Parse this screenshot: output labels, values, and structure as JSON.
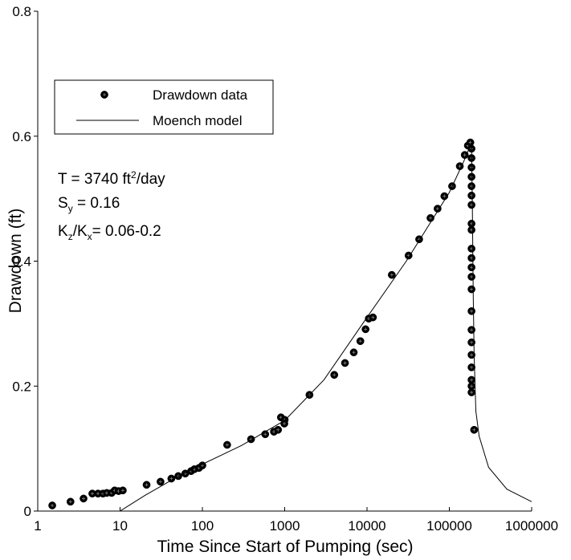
{
  "chart_data": {
    "type": "scatter",
    "xlabel": "Time Since Start of Pumping (sec)",
    "ylabel": "Drawdown  (ft)",
    "xscale": "log",
    "xlim": [
      1,
      1000000
    ],
    "xticks": [
      1,
      10,
      100,
      1000,
      10000,
      100000,
      1000000
    ],
    "ylim": [
      0,
      0.8
    ],
    "yticks": [
      0,
      0.2,
      0.4,
      0.6,
      0.8
    ],
    "legend": "upper left",
    "annotations": [
      [
        "T = 3740 ft",
        "2",
        "/day"
      ],
      [
        "S",
        "y",
        " = 0.16"
      ],
      [
        "K",
        "z",
        "/K",
        "x",
        "= 0.06-0.2"
      ]
    ],
    "series": [
      {
        "name": "Drawdown data",
        "type": "scatter",
        "color": "#000000",
        "x": [
          1.5,
          2.5,
          3.6,
          4.6,
          5.4,
          6.2,
          6.9,
          7.9,
          8.6,
          9.6,
          10.8,
          21,
          31,
          42,
          51,
          62,
          73,
          80,
          91,
          100,
          200,
          390,
          580,
          740,
          830,
          900,
          1000,
          990,
          2000,
          4000,
          5400,
          6900,
          8300,
          9600,
          10500,
          11800,
          20000,
          32000,
          43000,
          59000,
          72000,
          87000,
          108000,
          134000,
          154000,
          168000,
          180000,
          186000,
          186000,
          186000,
          186000,
          186000,
          186000,
          186000,
          186000,
          186000,
          186000,
          186000,
          186000,
          186000,
          186000,
          186000,
          186000,
          186000,
          186000,
          186000,
          186000,
          186000,
          186000,
          200000
        ],
        "values": [
          0.009,
          0.015,
          0.02,
          0.028,
          0.028,
          0.028,
          0.029,
          0.029,
          0.033,
          0.032,
          0.033,
          0.042,
          0.047,
          0.052,
          0.056,
          0.06,
          0.064,
          0.067,
          0.069,
          0.073,
          0.106,
          0.115,
          0.123,
          0.127,
          0.13,
          0.15,
          0.146,
          0.14,
          0.186,
          0.218,
          0.237,
          0.254,
          0.272,
          0.291,
          0.308,
          0.31,
          0.378,
          0.409,
          0.435,
          0.469,
          0.484,
          0.504,
          0.52,
          0.552,
          0.57,
          0.585,
          0.59,
          0.58,
          0.565,
          0.55,
          0.535,
          0.52,
          0.505,
          0.49,
          0.46,
          0.45,
          0.42,
          0.405,
          0.39,
          0.375,
          0.355,
          0.32,
          0.29,
          0.27,
          0.25,
          0.23,
          0.21,
          0.2,
          0.19,
          0.13
        ]
      },
      {
        "name": "Moench model",
        "type": "line",
        "color": "#000000",
        "x": [
          10,
          20,
          50,
          100,
          300,
          1000,
          3000,
          10000,
          30000,
          100000,
          150000,
          180000,
          186000,
          190000,
          195000,
          200000,
          210000,
          230000,
          300000,
          500000,
          1000000
        ],
        "values": [
          0,
          0.025,
          0.055,
          0.075,
          0.105,
          0.145,
          0.21,
          0.31,
          0.4,
          0.51,
          0.56,
          0.585,
          0.59,
          0.5,
          0.35,
          0.25,
          0.16,
          0.12,
          0.07,
          0.035,
          0.015
        ]
      }
    ]
  }
}
